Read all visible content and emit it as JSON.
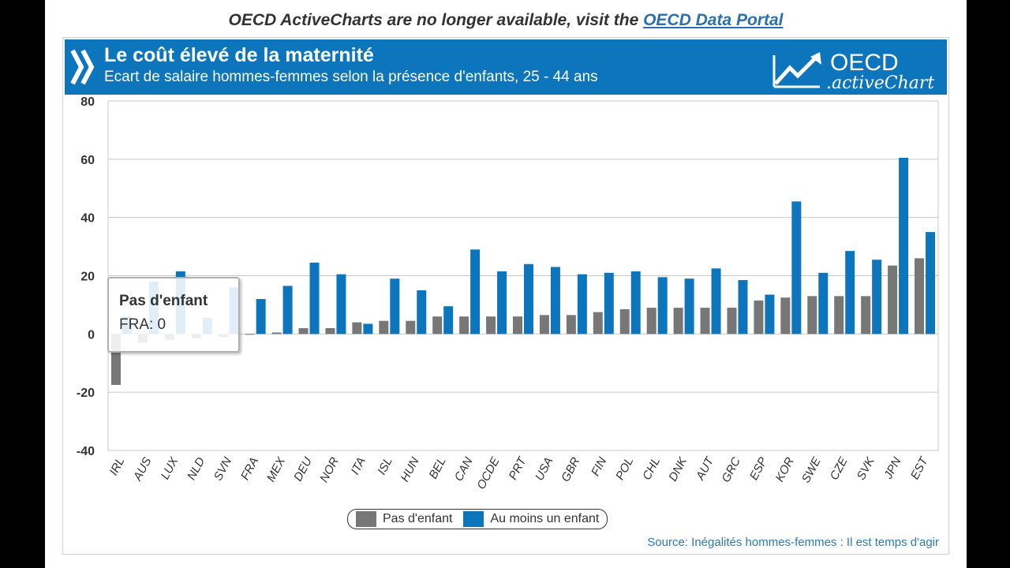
{
  "notice": {
    "text": "OECD ActiveCharts are no longer available, visit the ",
    "link": "OECD Data Portal"
  },
  "header": {
    "title": "Le coût élevé de la maternité",
    "subtitle": "Ecart de salaire hommes-femmes selon la présence d'enfants, 25 - 44 ans",
    "logo_main": "OECD",
    "logo_sub": ".activeChart"
  },
  "colors": {
    "header_bg": "#0d75bc",
    "series_no_child": "#777777",
    "series_child": "#0d75bc"
  },
  "tooltip": {
    "title": "Pas d'enfant",
    "value": "FRA: 0"
  },
  "source": "Source: Inégalités hommes-femmes : Il est temps d'agir",
  "chart_data": {
    "type": "bar",
    "categories": [
      "IRL",
      "AUS",
      "LUX",
      "NLD",
      "SVN",
      "FRA",
      "MEX",
      "DEU",
      "NOR",
      "ITA",
      "ISL",
      "HUN",
      "BEL",
      "CAN",
      "OCDE",
      "PRT",
      "USA",
      "GBR",
      "FIN",
      "POL",
      "CHL",
      "DNK",
      "AUT",
      "GRC",
      "ESP",
      "KOR",
      "SWE",
      "CZE",
      "SVK",
      "JPN",
      "EST"
    ],
    "series": [
      {
        "name": "Pas d'enfant",
        "color": "#777777",
        "values": [
          -17.5,
          -3,
          -2,
          -1.5,
          -1,
          0,
          0.5,
          2,
          2,
          4,
          4.5,
          4.5,
          6,
          6,
          6,
          6,
          6.5,
          6.5,
          7.5,
          8.5,
          9,
          9,
          9,
          9,
          11.5,
          12.5,
          13,
          13,
          13,
          23.5,
          26
        ]
      },
      {
        "name": "Au moins un enfant",
        "color": "#0d75bc",
        "values": [
          6,
          18,
          21.5,
          5.5,
          16,
          12,
          16.5,
          24.5,
          20.5,
          3.5,
          19,
          15,
          9.5,
          29,
          21.5,
          24,
          23,
          20.5,
          21,
          21.5,
          19.5,
          19,
          22.5,
          18.5,
          13.5,
          45.5,
          21,
          28.5,
          25.5,
          60.5,
          35
        ]
      }
    ],
    "ylim": [
      -40,
      80
    ],
    "yticks": [
      -40,
      -20,
      0,
      20,
      40,
      60,
      80
    ],
    "xlabel": "",
    "ylabel": "",
    "grid": true,
    "legend": "bottom-center"
  }
}
